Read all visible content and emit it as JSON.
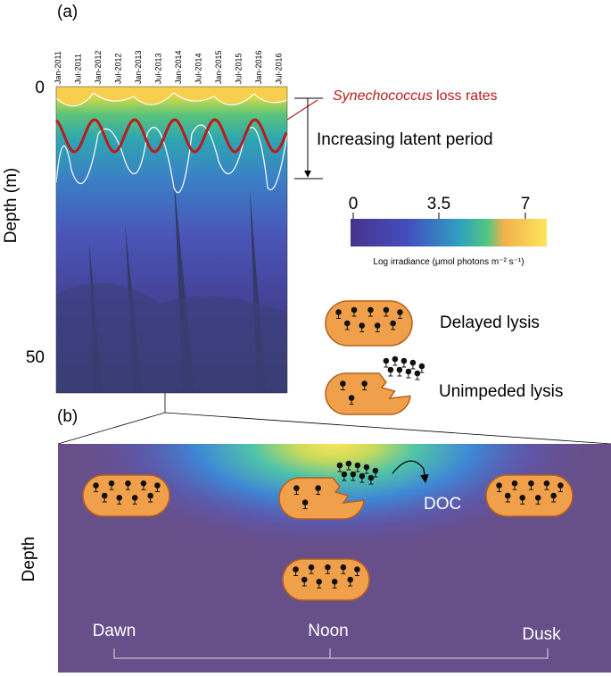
{
  "panel_a": {
    "label": "(a)",
    "dates": [
      "Jan-2011",
      "Jul-2011",
      "Jan-2012",
      "Jul-2012",
      "Jan-2013",
      "Jul-2013",
      "Jan-2014",
      "Jul-2014",
      "Jan-2015",
      "Jul-2015",
      "Jan-2016",
      "Jul-2016"
    ],
    "depth_axis": {
      "label": "Depth (m)",
      "ticks": [
        "0",
        "50"
      ]
    },
    "colorbar": {
      "ticks": [
        "0",
        "3.5",
        "7"
      ],
      "label": "Log irradiance (μmol photons m⁻² s⁻¹)"
    },
    "loss_rates": {
      "species": "Synechococcus",
      "text": "loss rates"
    },
    "latent_period": "Increasing latent period",
    "legend": [
      {
        "label": "Delayed lysis"
      },
      {
        "label": "Unimpeded lysis"
      }
    ]
  },
  "panel_b": {
    "label": "(b)",
    "axis_label": "Depth",
    "product": "DOC",
    "times": [
      "Dawn",
      "Noon",
      "Dusk"
    ]
  }
}
